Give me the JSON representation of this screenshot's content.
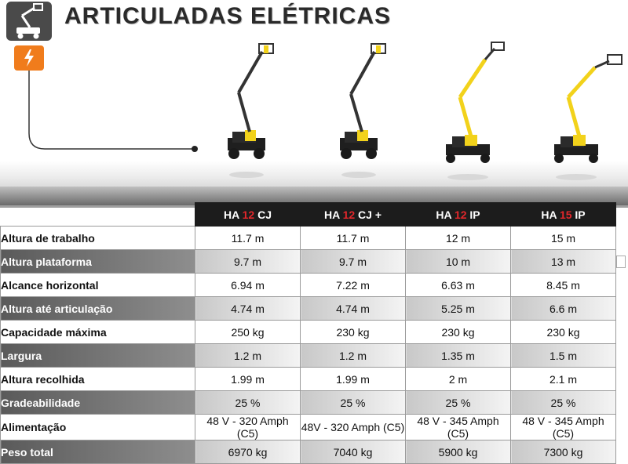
{
  "title": "ARTICULADAS ELÉTRICAS",
  "icons": {
    "logo": "aerial-lift-icon",
    "electric": "lightning-bolt-icon"
  },
  "colors": {
    "accent": "#f07c1c",
    "model_number": "#e4272b",
    "machine_body": "#f2d21b"
  },
  "models": [
    {
      "prefix": "HA",
      "number": "12",
      "suffix": "CJ"
    },
    {
      "prefix": "HA",
      "number": "12",
      "suffix": "CJ +"
    },
    {
      "prefix": "HA",
      "number": "12",
      "suffix": "IP"
    },
    {
      "prefix": "HA",
      "number": "15",
      "suffix": "IP"
    }
  ],
  "rows": [
    {
      "label": "Altura de trabalho",
      "values": [
        "11.7 m",
        "11.7 m",
        "12 m",
        "15 m"
      ]
    },
    {
      "label": "Altura plataforma",
      "values": [
        "9.7 m",
        "9.7 m",
        "10 m",
        "13 m"
      ]
    },
    {
      "label": "Alcance horizontal",
      "values": [
        "6.94 m",
        "7.22 m",
        "6.63 m",
        "8.45 m"
      ]
    },
    {
      "label": "Altura até articulação",
      "values": [
        "4.74 m",
        "4.74 m",
        "5.25 m",
        "6.6 m"
      ]
    },
    {
      "label": "Capacidade máxima",
      "values": [
        "250 kg",
        "230 kg",
        "230 kg",
        "230 kg"
      ]
    },
    {
      "label": "Largura",
      "values": [
        "1.2 m",
        "1.2 m",
        "1.35 m",
        "1.5 m"
      ]
    },
    {
      "label": "Altura recolhida",
      "values": [
        "1.99 m",
        "1.99 m",
        "2 m",
        "2.1 m"
      ]
    },
    {
      "label": "Gradeabilidade",
      "values": [
        "25 %",
        "25 %",
        "25 %",
        "25 %"
      ]
    },
    {
      "label": "Alimentação",
      "values": [
        "48 V - 320 Amph (C5)",
        "48V - 320 Amph (C5)",
        "48 V - 345 Amph (C5)",
        "48 V - 345 Amph (C5)"
      ]
    },
    {
      "label": "Peso total",
      "values": [
        "6970 kg",
        "7040 kg",
        "5900 kg",
        "7300 kg"
      ]
    }
  ]
}
